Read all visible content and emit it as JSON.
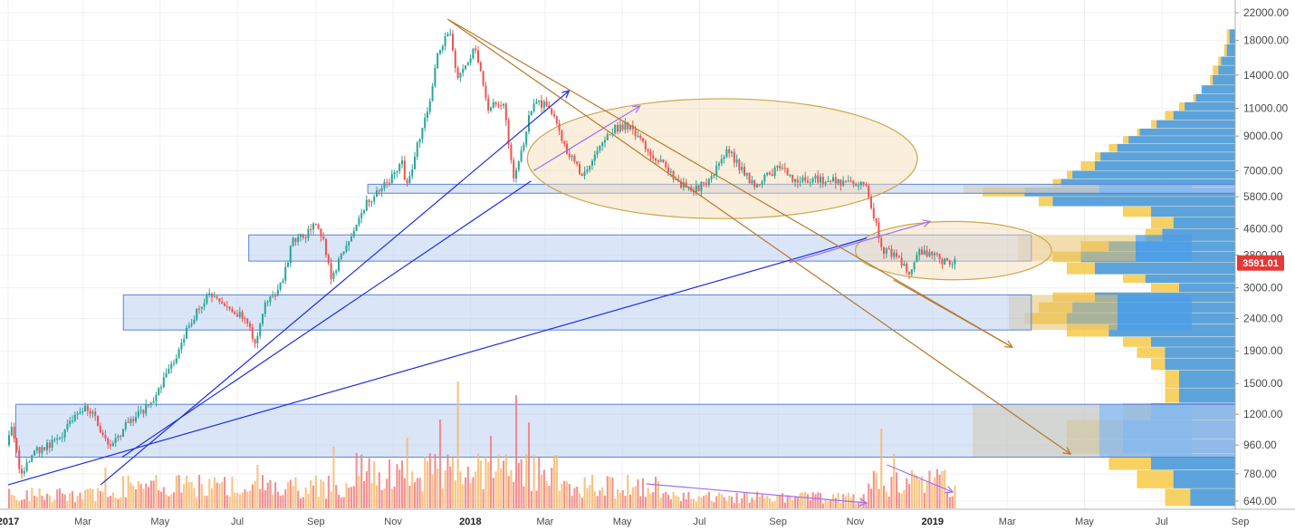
{
  "chart_data": {
    "type": "candlestick",
    "y_scale": "log",
    "ylim": [
      600,
      23000
    ],
    "x_range": [
      "2017-01-01",
      "2019-10-15"
    ],
    "y_ticks": [
      "22000.00",
      "18000.00",
      "14000.00",
      "11000.00",
      "9000.00",
      "7000.00",
      "5800.00",
      "4600.00",
      "3800.00",
      "3000.00",
      "2400.00",
      "1900.00",
      "1500.00",
      "1200.00",
      "960.00",
      "780.00",
      "640.00"
    ],
    "x_ticks": [
      {
        "label": "2017",
        "date": "2017-01-01",
        "bold": true
      },
      {
        "label": "Mar",
        "date": "2017-03-01"
      },
      {
        "label": "May",
        "date": "2017-05-01"
      },
      {
        "label": "Jul",
        "date": "2017-07-01"
      },
      {
        "label": "Sep",
        "date": "2017-09-01"
      },
      {
        "label": "Nov",
        "date": "2017-11-01"
      },
      {
        "label": "2018",
        "date": "2018-01-01",
        "bold": true
      },
      {
        "label": "Mar",
        "date": "2018-03-01"
      },
      {
        "label": "May",
        "date": "2018-05-01"
      },
      {
        "label": "Jul",
        "date": "2018-07-01"
      },
      {
        "label": "Sep",
        "date": "2018-09-01"
      },
      {
        "label": "Nov",
        "date": "2018-11-01"
      },
      {
        "label": "2019",
        "date": "2019-01-01",
        "bold": true
      },
      {
        "label": "Mar",
        "date": "2019-03-01"
      },
      {
        "label": "May",
        "date": "2019-05-01"
      },
      {
        "label": "Jul",
        "date": "2019-07-01"
      },
      {
        "label": "Sep",
        "date": "2019-09-01"
      }
    ],
    "last_price": "3591.01",
    "price_path": [
      [
        "2017-01-01",
        960
      ],
      [
        "2017-01-05",
        1100
      ],
      [
        "2017-01-12",
        780
      ],
      [
        "2017-01-25",
        920
      ],
      [
        "2017-02-10",
        1000
      ],
      [
        "2017-02-25",
        1180
      ],
      [
        "2017-03-05",
        1250
      ],
      [
        "2017-03-10",
        1200
      ],
      [
        "2017-03-20",
        1000
      ],
      [
        "2017-03-25",
        950
      ],
      [
        "2017-04-05",
        1100
      ],
      [
        "2017-04-25",
        1300
      ],
      [
        "2017-05-05",
        1550
      ],
      [
        "2017-05-15",
        1800
      ],
      [
        "2017-05-25",
        2300
      ],
      [
        "2017-06-05",
        2700
      ],
      [
        "2017-06-12",
        2900
      ],
      [
        "2017-06-20",
        2600
      ],
      [
        "2017-07-01",
        2500
      ],
      [
        "2017-07-10",
        2400
      ],
      [
        "2017-07-16",
        1950
      ],
      [
        "2017-07-25",
        2700
      ],
      [
        "2017-08-05",
        3000
      ],
      [
        "2017-08-15",
        4200
      ],
      [
        "2017-08-25",
        4400
      ],
      [
        "2017-09-01",
        4700
      ],
      [
        "2017-09-08",
        4300
      ],
      [
        "2017-09-15",
        3200
      ],
      [
        "2017-09-22",
        3800
      ],
      [
        "2017-10-01",
        4400
      ],
      [
        "2017-10-12",
        5500
      ],
      [
        "2017-10-22",
        6000
      ],
      [
        "2017-11-01",
        6700
      ],
      [
        "2017-11-10",
        7400
      ],
      [
        "2017-11-12",
        6000
      ],
      [
        "2017-11-20",
        8000
      ],
      [
        "2017-11-29",
        10500
      ],
      [
        "2017-12-07",
        16000
      ],
      [
        "2017-12-17",
        19300
      ],
      [
        "2017-12-22",
        14000
      ],
      [
        "2017-12-28",
        14500
      ],
      [
        "2018-01-06",
        17000
      ],
      [
        "2018-01-16",
        11000
      ],
      [
        "2018-01-28",
        11500
      ],
      [
        "2018-02-06",
        6500
      ],
      [
        "2018-02-20",
        11200
      ],
      [
        "2018-03-05",
        11500
      ],
      [
        "2018-03-18",
        8200
      ],
      [
        "2018-04-01",
        6800
      ],
      [
        "2018-04-12",
        8000
      ],
      [
        "2018-04-24",
        9400
      ],
      [
        "2018-05-05",
        9800
      ],
      [
        "2018-05-20",
        8400
      ],
      [
        "2018-06-01",
        7500
      ],
      [
        "2018-06-15",
        6400
      ],
      [
        "2018-06-28",
        6100
      ],
      [
        "2018-07-10",
        6500
      ],
      [
        "2018-07-25",
        8200
      ],
      [
        "2018-08-05",
        7000
      ],
      [
        "2018-08-15",
        6300
      ],
      [
        "2018-08-31",
        7000
      ],
      [
        "2018-09-05",
        7300
      ],
      [
        "2018-09-15",
        6500
      ],
      [
        "2018-10-01",
        6600
      ],
      [
        "2018-10-15",
        6500
      ],
      [
        "2018-11-01",
        6400
      ],
      [
        "2018-11-10",
        6300
      ],
      [
        "2018-11-14",
        5500
      ],
      [
        "2018-11-20",
        4500
      ],
      [
        "2018-11-25",
        3900
      ],
      [
        "2018-12-05",
        3800
      ],
      [
        "2018-12-15",
        3300
      ],
      [
        "2018-12-22",
        3900
      ],
      [
        "2018-12-28",
        3800
      ],
      [
        "2019-01-05",
        3900
      ],
      [
        "2019-01-10",
        3650
      ],
      [
        "2019-01-18",
        3591.01
      ]
    ],
    "zones": [
      {
        "from_date": "2017-10-12",
        "to_date": "2019-10-15",
        "low": 5950,
        "high": 6350,
        "color": "#bcd0f3"
      },
      {
        "from_date": "2017-07-10",
        "to_date": "2019-03-20",
        "low": 3640,
        "high": 4400,
        "color": "#bcd0f3"
      },
      {
        "from_date": "2017-04-02",
        "to_date": "2019-03-20",
        "low": 2210,
        "high": 2850,
        "color": "#bcd0f3"
      },
      {
        "from_date": "2017-01-07",
        "to_date": "2019-10-15",
        "low": 880,
        "high": 1290,
        "color": "#bcd0f3"
      }
    ],
    "ellipses": [
      {
        "from_date": "2018-02-15",
        "to_date": "2018-12-20",
        "top": 11800,
        "bottom": 4950
      },
      {
        "from_date": "2018-11-01",
        "to_date": "2019-04-05",
        "top": 4850,
        "bottom": 3180
      }
    ],
    "trend_lines": [
      {
        "color": "#1f2ee0",
        "from": [
          "2017-01-01",
          720
        ],
        "to": [
          "2018-11-10",
          4300
        ]
      },
      {
        "color": "#1f2ee0",
        "from": [
          "2017-03-15",
          720
        ],
        "to": [
          "2018-03-20",
          12500
        ],
        "arrow": true
      },
      {
        "color": "#1f2ee0",
        "from": [
          "2017-04-01",
          880
        ],
        "to": [
          "2018-02-18",
          6500
        ]
      },
      {
        "color": "#a070f0",
        "from": [
          "2018-02-20",
          7000
        ],
        "to": [
          "2018-05-15",
          11200
        ],
        "arrow": true
      },
      {
        "color": "#a070f0",
        "from": [
          "2018-09-10",
          3600
        ],
        "to": [
          "2018-12-30",
          4850
        ],
        "arrow": true
      },
      {
        "color": "#b8792a",
        "from": [
          "2017-12-14",
          21000
        ],
        "to": [
          "2019-03-05",
          1950
        ],
        "arrow": true
      },
      {
        "color": "#b8792a",
        "from": [
          "2017-12-14",
          21000
        ],
        "to": [
          "2019-04-20",
          900
        ],
        "arrow": true
      },
      {
        "color": "#b8792a",
        "from": [
          "2018-12-01",
          3180
        ],
        "to": [
          "2019-03-05",
          1950
        ]
      }
    ],
    "volume_trend_lines": [
      {
        "color": "#a070f0",
        "from": [
          "2018-05-20",
          0.45
        ],
        "to": [
          "2018-11-10",
          0.1
        ],
        "arrow": true
      },
      {
        "color": "#a070f0",
        "from": [
          "2018-11-26",
          0.8
        ],
        "to": [
          "2019-01-17",
          0.3
        ],
        "arrow": true
      }
    ],
    "volume_profile_right": [
      [
        19500,
        0.3,
        0.2
      ],
      [
        17500,
        0.4,
        0.3
      ],
      [
        16000,
        0.6,
        0.5
      ],
      [
        15000,
        0.8,
        0.6
      ],
      [
        14000,
        0.9,
        0.8
      ],
      [
        13000,
        1.1,
        1.2
      ],
      [
        12200,
        1.5,
        1.4
      ],
      [
        11500,
        2.0,
        1.8
      ],
      [
        10800,
        2.5,
        2.2
      ],
      [
        10100,
        3.0,
        2.8
      ],
      [
        9500,
        3.5,
        3.4
      ],
      [
        9000,
        4.0,
        3.8
      ],
      [
        8500,
        4.5,
        4.2
      ],
      [
        8000,
        5.0,
        4.8
      ],
      [
        7500,
        5.5,
        5.0
      ],
      [
        7000,
        6.0,
        5.8
      ],
      [
        6600,
        6.5,
        6.2
      ],
      [
        6200,
        9.0,
        7.5
      ],
      [
        5800,
        7.0,
        6.5
      ],
      [
        5400,
        4.0,
        3.0
      ],
      [
        5000,
        3.0,
        2.2
      ],
      [
        4600,
        3.2,
        2.6
      ],
      [
        4200,
        5.5,
        4.5
      ],
      [
        3900,
        6.5,
        5.5
      ],
      [
        3600,
        6.0,
        5.0
      ],
      [
        3300,
        4.0,
        3.2
      ],
      [
        3100,
        3.0,
        2.0
      ],
      [
        2900,
        6.5,
        5.0
      ],
      [
        2700,
        7.0,
        5.8
      ],
      [
        2500,
        7.5,
        6.0
      ],
      [
        2300,
        6.0,
        4.5
      ],
      [
        2100,
        4.0,
        3.0
      ],
      [
        1950,
        3.5,
        2.5
      ],
      [
        1800,
        3.0,
        2.5
      ],
      [
        1650,
        2.5,
        2.0
      ],
      [
        1450,
        2.5,
        2.0
      ],
      [
        1300,
        4.0,
        3.0
      ],
      [
        1150,
        6.0,
        4.0
      ],
      [
        1000,
        6.0,
        4.0
      ],
      [
        900,
        4.5,
        3.0
      ],
      [
        800,
        3.5,
        2.2
      ],
      [
        700,
        2.5,
        1.6
      ]
    ]
  }
}
